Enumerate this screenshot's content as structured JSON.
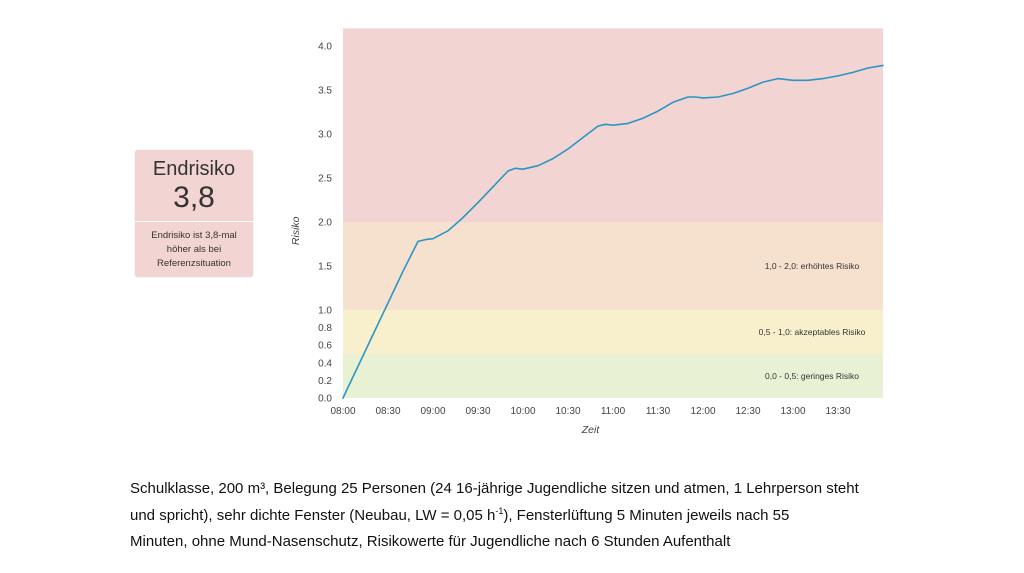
{
  "card": {
    "title": "Endrisiko",
    "value": "3,8",
    "description": "Endrisiko ist 3,8-mal höher als bei Referenzsituation"
  },
  "chart_data": {
    "type": "line",
    "title": "",
    "xlabel": "Zeit",
    "ylabel": "Risiko",
    "x_ticks": [
      "08:00",
      "08:30",
      "09:00",
      "09:30",
      "10:00",
      "10:30",
      "11:00",
      "11:30",
      "12:00",
      "12:30",
      "13:00",
      "13:30"
    ],
    "y_ticks": [
      "0.0",
      "0.2",
      "0.4",
      "0.6",
      "0.8",
      "1.0",
      "1.5",
      "2.0",
      "2.5",
      "3.0",
      "3.5",
      "4.0"
    ],
    "ylim": [
      0,
      4.2
    ],
    "xlim_minutes": [
      0,
      360
    ],
    "zones": [
      {
        "from": 0.0,
        "to": 0.5,
        "label": "0,0 - 0,5: geringes Risiko",
        "color": "#e8f1d3"
      },
      {
        "from": 0.5,
        "to": 1.0,
        "label": "0,5 - 1,0: akzeptables Risiko",
        "color": "#f8f0cd"
      },
      {
        "from": 1.0,
        "to": 2.0,
        "label": "1,0 - 2,0: erhöhtes Risiko",
        "color": "#f6e1cf"
      },
      {
        "from": 2.0,
        "to": 4.2,
        "label": "",
        "color": "#f2d5d2"
      }
    ],
    "series": [
      {
        "name": "Risiko",
        "color": "#2b95c4",
        "x_minutes": [
          0,
          10,
          20,
          30,
          40,
          50,
          55,
          60,
          70,
          80,
          90,
          100,
          110,
          115,
          120,
          130,
          140,
          150,
          160,
          170,
          175,
          180,
          190,
          200,
          210,
          220,
          230,
          235,
          240,
          250,
          260,
          270,
          280,
          290,
          295,
          300,
          310,
          320,
          330,
          340,
          350,
          360
        ],
        "y": [
          0.0,
          0.36,
          0.72,
          1.08,
          1.44,
          1.78,
          1.8,
          1.81,
          1.9,
          2.05,
          2.22,
          2.4,
          2.58,
          2.61,
          2.6,
          2.64,
          2.72,
          2.83,
          2.96,
          3.09,
          3.11,
          3.1,
          3.12,
          3.18,
          3.26,
          3.36,
          3.42,
          3.42,
          3.41,
          3.42,
          3.46,
          3.52,
          3.59,
          3.63,
          3.62,
          3.61,
          3.61,
          3.63,
          3.66,
          3.7,
          3.75,
          3.78
        ]
      }
    ]
  },
  "caption": {
    "line1": "Schulklasse, 200 m³, Belegung 25 Personen (24 16-jährige Jugendliche sitzen und atmen, 1 Lehrperson steht",
    "line2_pre": "und spricht), sehr dichte Fenster (Neubau, LW = 0,05 h",
    "line2_sup": "-1",
    "line2_post": "), Fensterlüftung 5 Minuten jeweils nach 55",
    "line3": "Minuten, ohne Mund-Nasenschutz, Risikowerte für Jugendliche nach 6 Stunden Aufenthalt"
  }
}
